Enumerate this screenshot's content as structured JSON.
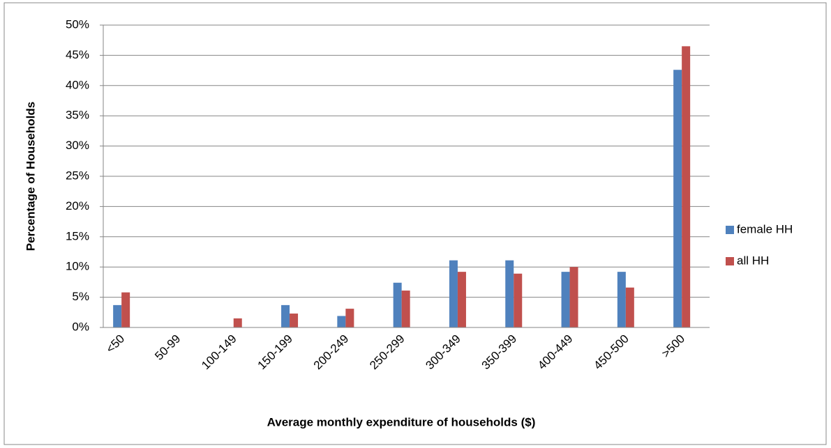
{
  "chart_data": {
    "type": "bar",
    "x_label": "Average monthly expenditure of households ($)",
    "y_label": "Percentage of Households",
    "categories": [
      "<50",
      "50-99",
      "100-149",
      "150-199",
      "200-249",
      "250-299",
      "300-349",
      "350-399",
      "400-449",
      "450-500",
      ">500"
    ],
    "series": [
      {
        "name": "female HH",
        "color": "#4f81bd",
        "values": [
          3.7,
          0,
          0,
          3.7,
          1.9,
          7.4,
          11.1,
          11.1,
          9.2,
          9.2,
          42.6
        ]
      },
      {
        "name": "all HH",
        "color": "#c0504d",
        "values": [
          5.8,
          0,
          1.5,
          2.3,
          3.1,
          6.1,
          9.2,
          8.9,
          10.0,
          6.6,
          46.5
        ]
      }
    ],
    "ylim": [
      0,
      50
    ],
    "yticks": [
      {
        "value": 0,
        "label": "0%"
      },
      {
        "value": 5,
        "label": "5%"
      },
      {
        "value": 10,
        "label": "10%"
      },
      {
        "value": 15,
        "label": "15%"
      },
      {
        "value": 20,
        "label": "20%"
      },
      {
        "value": 25,
        "label": "25%"
      },
      {
        "value": 30,
        "label": "30%"
      },
      {
        "value": 35,
        "label": "35%"
      },
      {
        "value": 40,
        "label": "40%"
      },
      {
        "value": 45,
        "label": "45%"
      },
      {
        "value": 50,
        "label": "50%"
      }
    ],
    "grid": true,
    "legend": "right"
  }
}
